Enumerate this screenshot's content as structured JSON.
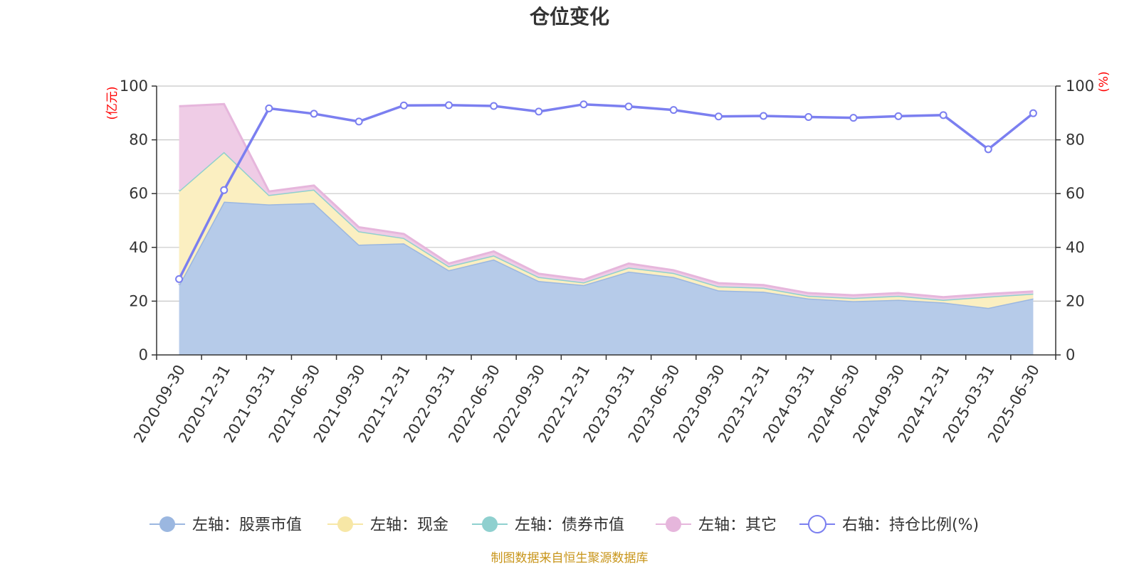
{
  "chart_data": {
    "type": "area",
    "title": "仓位变化",
    "left_unit": "(亿元)",
    "right_unit": "(%)",
    "categories": [
      "2020-09-30",
      "2020-12-31",
      "2021-03-31",
      "2021-06-30",
      "2021-09-30",
      "2021-12-31",
      "2022-03-31",
      "2022-06-30",
      "2022-09-30",
      "2022-12-31",
      "2023-03-31",
      "2023-06-30",
      "2023-09-30",
      "2023-12-31",
      "2024-03-31",
      "2024-06-30",
      "2024-09-30",
      "2024-12-31",
      "2025-03-31",
      "2025-06-30"
    ],
    "left_ylim": [
      0,
      100
    ],
    "left_ticks": [
      "0",
      "20",
      "40",
      "60",
      "80",
      "100"
    ],
    "right_ylim": [
      0,
      100
    ],
    "right_ticks": [
      "0",
      "20",
      "40",
      "60",
      "80",
      "100"
    ],
    "grid": true,
    "legend_position": "bottom",
    "series": [
      {
        "name": "左轴：股票市值",
        "axis": "left",
        "stacked": true,
        "color": "#9bb7e0",
        "fill": "#b6cbe9",
        "values": [
          26,
          57,
          56,
          56.5,
          41,
          41.5,
          31.5,
          35.5,
          27.5,
          26,
          31,
          29,
          24,
          23.5,
          21,
          20,
          20.5,
          19.5,
          17.5,
          21
        ]
      },
      {
        "name": "左轴：现金",
        "axis": "left",
        "stacked": true,
        "color": "#f7e7a6",
        "fill": "#fbefc1",
        "values": [
          35,
          18.5,
          3.5,
          5,
          5,
          2,
          1.5,
          1.5,
          1.5,
          1,
          1.5,
          1.5,
          1.5,
          1.5,
          1,
          1.2,
          1.5,
          1,
          4.2,
          1.8
        ]
      },
      {
        "name": "左轴：债券市值",
        "axis": "left",
        "stacked": true,
        "color": "#8fd0cf",
        "fill": "#b5e2e1",
        "values": [
          0,
          0,
          0,
          0,
          0,
          0,
          0,
          0,
          0,
          0,
          0,
          0,
          0,
          0,
          0,
          0,
          0,
          0,
          0,
          0
        ]
      },
      {
        "name": "左轴：其它",
        "axis": "left",
        "stacked": true,
        "color": "#e6b6dc",
        "fill": "#efcce6",
        "values": [
          31.5,
          17.8,
          1.3,
          1.5,
          1.5,
          1.5,
          1,
          1.5,
          1.2,
          1,
          1.5,
          1,
          1.2,
          1,
          1,
          1,
          1,
          1,
          1,
          0.8
        ]
      },
      {
        "name": "右轴：持仓比例(%)",
        "axis": "right",
        "type": "line",
        "color": "#7b7ff0",
        "values": [
          28.2,
          61.3,
          91.7,
          89.7,
          86.8,
          92.8,
          92.9,
          92.6,
          90.5,
          93.2,
          92.4,
          91.1,
          88.7,
          88.9,
          88.5,
          88.2,
          88.8,
          89.2,
          76.5,
          89.9
        ]
      }
    ],
    "source": "制图数据来自恒生聚源数据库"
  }
}
